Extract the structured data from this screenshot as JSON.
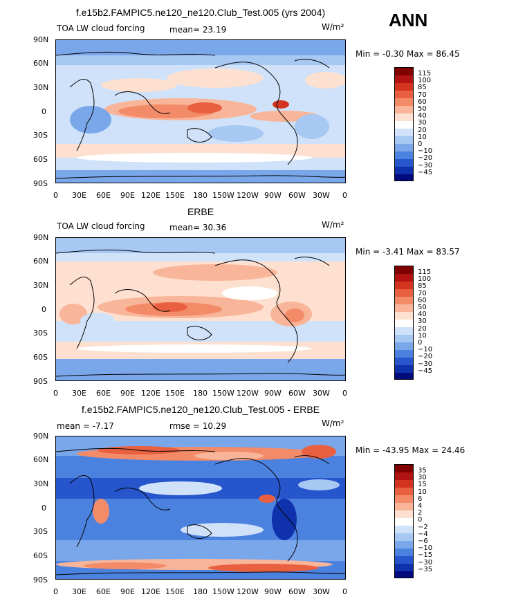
{
  "header": {
    "season": "ANN"
  },
  "panels": [
    {
      "title": "f.e15b2.FAMPIC5.ne120_ne120.Club_Test.005 (yrs 2004)",
      "left_label": "TOA LW cloud forcing",
      "center_label": "mean=  23.19",
      "units": "W/m²",
      "minmax": "Min =  -0.30 Max =  86.45",
      "colorbar_labels": [
        "115",
        "100",
        "85",
        "70",
        "60",
        "50",
        "40",
        "30",
        "20",
        "10",
        "0",
        "−10",
        "−20",
        "−30",
        "−45"
      ]
    },
    {
      "title": "ERBE",
      "left_label": "TOA LW cloud forcing",
      "center_label": "mean=  30.36",
      "units": "W/m²",
      "minmax": "Min =  -3.41 Max =  83.57",
      "colorbar_labels": [
        "115",
        "100",
        "85",
        "70",
        "60",
        "50",
        "40",
        "30",
        "20",
        "10",
        "0",
        "−10",
        "−20",
        "−30",
        "−45"
      ]
    },
    {
      "title": "f.e15b2.FAMPIC5.ne120_ne120.Club_Test.005 - ERBE",
      "left_label": "mean =  -7.17",
      "center_label": "rmse =  10.29",
      "units": "W/m²",
      "minmax": "Min = -43.95 Max =  24.46",
      "colorbar_labels": [
        "35",
        "30",
        "15",
        "10",
        "6",
        "4",
        "2",
        "0",
        "−2",
        "−4",
        "−6",
        "−10",
        "−15",
        "−30",
        "−35"
      ]
    }
  ],
  "axes": {
    "y_ticks": [
      "90N",
      "60N",
      "30N",
      "0",
      "30S",
      "60S",
      "90S"
    ],
    "x_ticks": [
      "0",
      "30E",
      "60E",
      "90E",
      "120E",
      "150E",
      "180",
      "150W",
      "120W",
      "90W",
      "60W",
      "30W",
      "0"
    ]
  },
  "colors": {
    "cbar_abs": [
      "#7f0000",
      "#b11212",
      "#d3341f",
      "#e8603f",
      "#f38b69",
      "#f9b599",
      "#fde0cf",
      "#ffffff",
      "#cfe2f9",
      "#a7c8f3",
      "#7aa7ea",
      "#4c82df",
      "#2755cc",
      "#0f32ac",
      "#000a7a"
    ],
    "cbar_diff": [
      "#7f0000",
      "#b11212",
      "#d3341f",
      "#e8603f",
      "#f38b69",
      "#f9b599",
      "#fde0cf",
      "#ffffff",
      "#cfe2f9",
      "#a7c8f3",
      "#7aa7ea",
      "#4c82df",
      "#2755cc",
      "#0f32ac",
      "#000a7a"
    ]
  }
}
